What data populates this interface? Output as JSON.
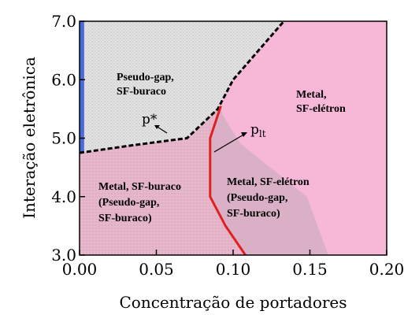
{
  "chart_data": {
    "type": "area",
    "xlabel": "Concentração de portadores",
    "ylabel": "Interação eletrônica",
    "xlim": [
      0.0,
      0.2
    ],
    "ylim": [
      3.0,
      7.0
    ],
    "x_ticks": [
      "0.00",
      "0.05",
      "0.10",
      "0.15",
      "0.20"
    ],
    "y_ticks": [
      "3.0",
      "4.0",
      "5.0",
      "6.0",
      "7.0"
    ],
    "grid": false,
    "regions": [
      {
        "label_lines": [
          "Pseudo-gap,",
          "SF-buraco"
        ],
        "color": "#dcdcdc"
      },
      {
        "label_lines": [
          "Metal,",
          "SF-elétron"
        ],
        "color": "#f7b8d8"
      },
      {
        "label_lines": [
          "Metal, SF-buraco",
          "(Pseudo-gap,",
          "SF-buraco)"
        ],
        "color": "#e8b5c9"
      },
      {
        "label_lines": [
          "Metal, SF-elétron",
          "(Pseudo-gap,",
          "SF-buraco)"
        ],
        "color": "#d9b0c6"
      }
    ],
    "curves": [
      {
        "name": "p*",
        "style": "dashed",
        "color": "#000000",
        "points": [
          [
            0.0,
            4.75
          ],
          [
            0.035,
            4.88
          ],
          [
            0.07,
            5.0
          ],
          [
            0.09,
            5.5
          ],
          [
            0.1,
            6.0
          ],
          [
            0.133,
            7.0
          ]
        ]
      },
      {
        "name": "p_lt",
        "style": "solid",
        "color": "#e02020",
        "points": [
          [
            0.092,
            5.55
          ],
          [
            0.085,
            5.0
          ],
          [
            0.085,
            4.0
          ],
          [
            0.095,
            3.5
          ],
          [
            0.108,
            3.0
          ]
        ]
      }
    ],
    "shaded_boundary": [
      [
        0.093,
        5.4
      ],
      [
        0.105,
        4.9
      ],
      [
        0.148,
        4.0
      ],
      [
        0.162,
        3.0
      ]
    ],
    "left_strip": {
      "x_range": [
        0.0,
        0.003
      ],
      "color": "#4a6ad8"
    },
    "annotations": [
      "p*",
      "p",
      "lt"
    ]
  }
}
